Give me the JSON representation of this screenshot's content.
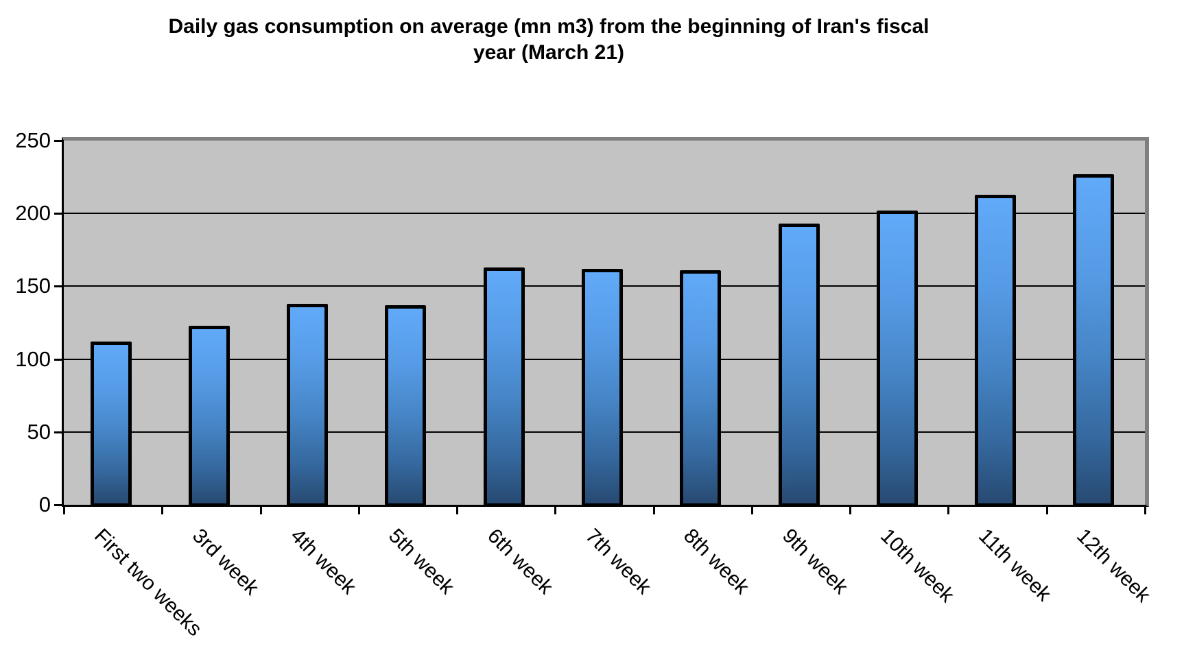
{
  "title": {
    "line1": "Daily gas consumption on average (mn m3) from the beginning of Iran's fiscal",
    "line2": "year (March 21)"
  },
  "chart_data": {
    "type": "bar",
    "title": "Daily gas consumption on average (mn m3) from the beginning of Iran's fiscal year (March 21)",
    "categories": [
      "First two weeks",
      "3rd week",
      "4th week",
      "5th week",
      "6th week",
      "7th week",
      "8th week",
      "9th week",
      "10th week",
      "11th week",
      "12th week"
    ],
    "values": [
      112,
      123,
      138,
      137,
      163,
      162,
      161,
      193,
      202,
      213,
      227
    ],
    "xlabel": "",
    "ylabel": "",
    "ylim": [
      0,
      250
    ],
    "yticks": [
      0,
      50,
      100,
      150,
      200,
      250
    ],
    "grid": true,
    "legend": false,
    "x_label_rotation_deg": 45
  },
  "colors": {
    "bar_gradient_top": "#61AAF9",
    "bar_gradient_bottom": "#274A72",
    "bar_border": "#000000",
    "plot_background": "#C3C3C3",
    "plot_outer_border": "#7F7F7F",
    "axis_line": "#000000",
    "gridline": "#000000",
    "text": "#000000",
    "page_background": "#FFFFFF"
  }
}
